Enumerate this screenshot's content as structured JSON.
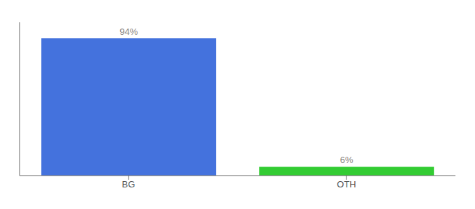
{
  "chart_data": {
    "type": "bar",
    "categories": [
      "BG",
      "OTH"
    ],
    "values": [
      94,
      6
    ],
    "colors": [
      "#4472dd",
      "#33cc33"
    ],
    "value_labels": [
      "94%",
      "6%"
    ],
    "ylim": [
      0,
      105
    ],
    "data_labels": true,
    "tick_labels": "x"
  }
}
